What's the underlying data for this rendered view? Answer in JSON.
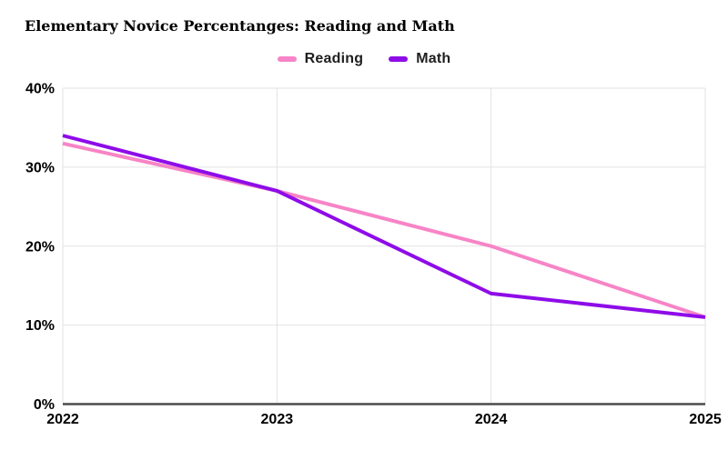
{
  "title": "Elementary Novice Percentanges: Reading and Math",
  "legend": {
    "items": [
      {
        "label": "Reading",
        "color": "#F784C6"
      },
      {
        "label": "Math",
        "color": "#8E0CE8"
      }
    ]
  },
  "chart_data": {
    "type": "line",
    "title": "Elementary Novice Percentanges: Reading and Math",
    "x": [
      "2022",
      "2023",
      "2024",
      "2025"
    ],
    "series": [
      {
        "name": "Reading",
        "color": "#F784C6",
        "values": [
          33,
          27,
          20,
          11
        ]
      },
      {
        "name": "Math",
        "color": "#8E0CE8",
        "values": [
          34,
          27,
          14,
          11
        ]
      }
    ],
    "xlabel": "",
    "ylabel": "",
    "ylim": [
      0,
      40
    ],
    "yticks": [
      0,
      10,
      20,
      30,
      40
    ],
    "ytick_suffix": "%",
    "grid": true,
    "legend_position": "top-center"
  },
  "colors": {
    "background": "#FFFFFF",
    "gridline": "#E2E2E2",
    "axis_line": "#4B4B4D",
    "tick_text": "#000000",
    "legend_text": "#1F1F1F"
  }
}
